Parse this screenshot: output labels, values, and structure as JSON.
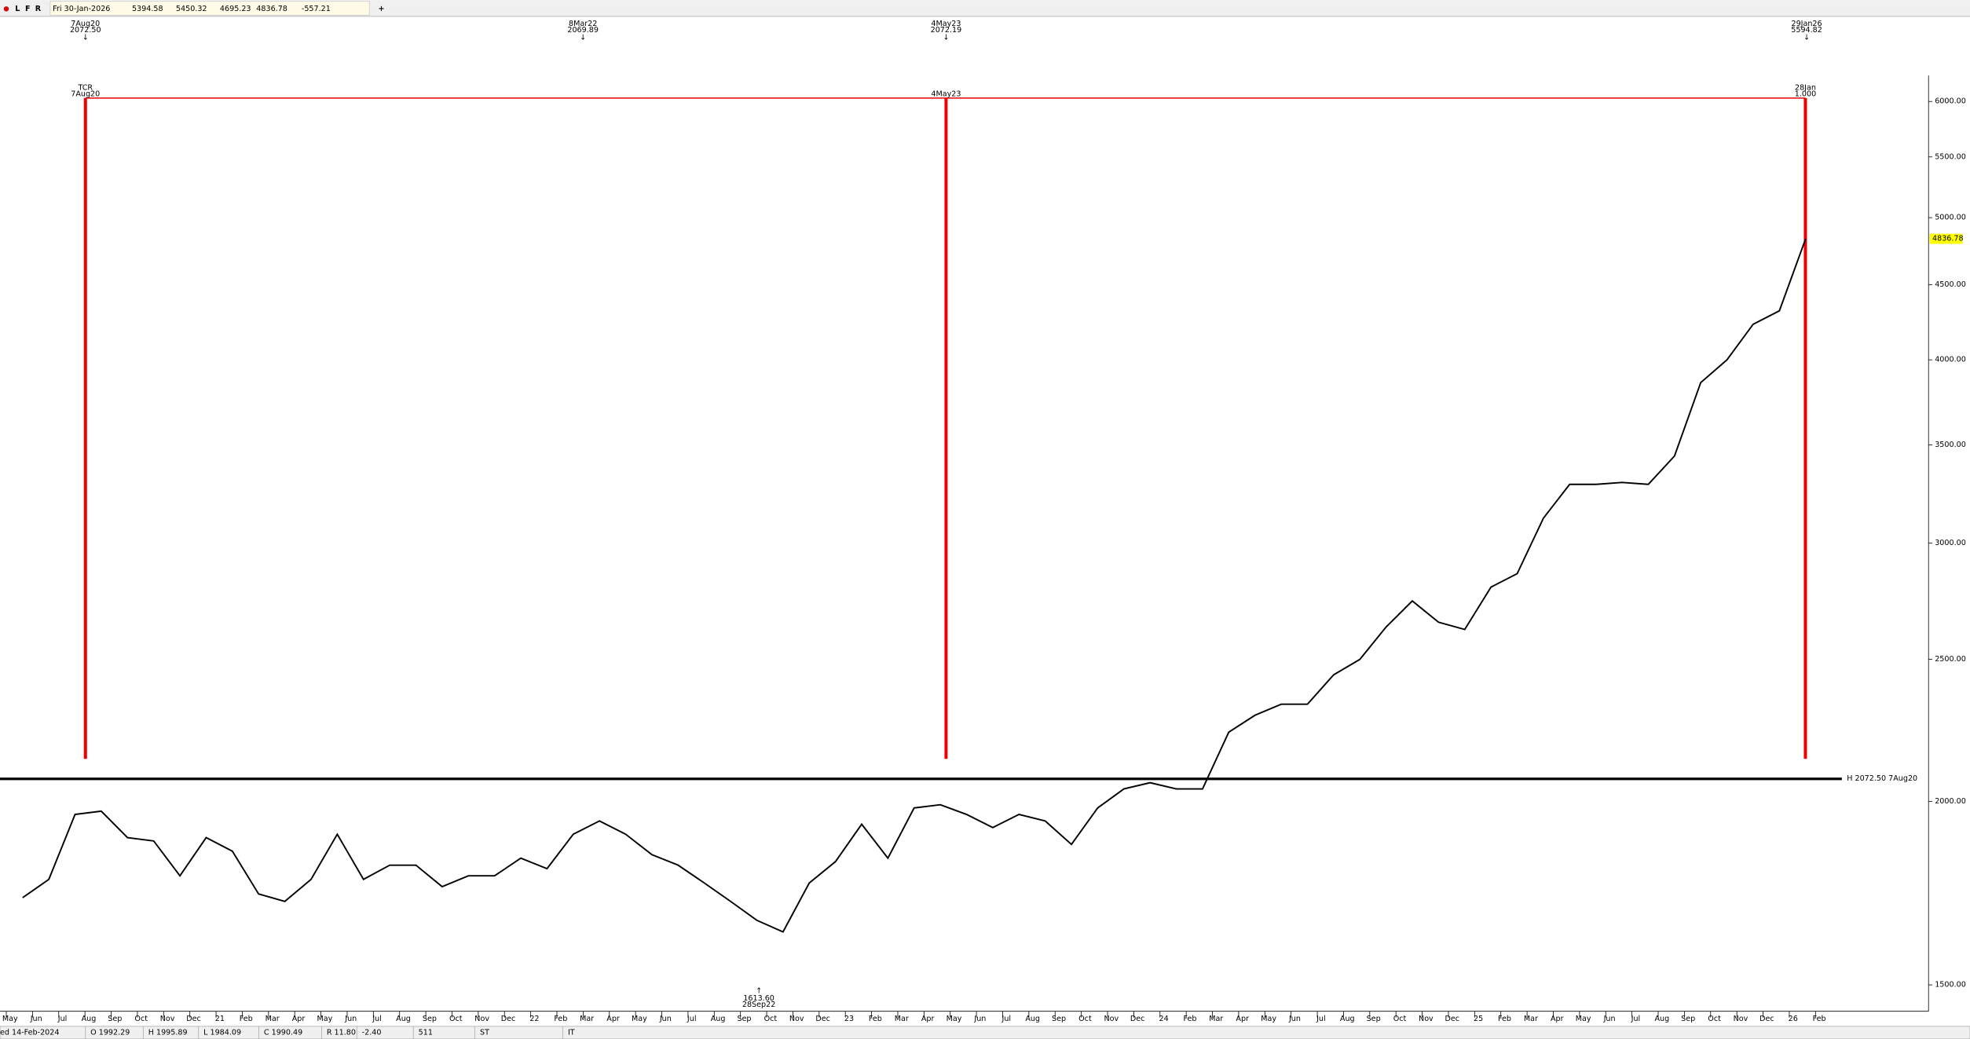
{
  "toolbar": {
    "buttons": [
      "L",
      "F",
      "R"
    ],
    "date": "Fri 30-Jan-2026",
    "open": "5394.58",
    "high": "5450.32",
    "low": "4695.23",
    "close": "4836.78",
    "change": "-557.21",
    "add": "+"
  },
  "status_bar": [
    "ed 14-Feb-2024",
    "O 1992.29",
    "H 1995.89",
    "L 1984.09",
    "C 1990.49",
    "R 11.80",
    "-2.40",
    "511",
    "ST",
    "IT"
  ],
  "chart_data": {
    "type": "line",
    "yscale": "log",
    "categories": [
      "May",
      "Jun",
      "Jul",
      "Aug",
      "Sep",
      "Oct",
      "Nov",
      "Dec",
      "21",
      "Feb",
      "Mar",
      "Apr",
      "May",
      "Jun",
      "Jul",
      "Aug",
      "Sep",
      "Oct",
      "Nov",
      "Dec",
      "22",
      "Feb",
      "Mar",
      "Apr",
      "May",
      "Jun",
      "Jul",
      "Aug",
      "Sep",
      "Oct",
      "Nov",
      "Dec",
      "23",
      "Feb",
      "Mar",
      "Apr",
      "May",
      "Jun",
      "Jul",
      "Aug",
      "Sep",
      "Oct",
      "Nov",
      "Dec",
      "24",
      "Feb",
      "Mar",
      "Apr",
      "May",
      "Jun",
      "Jul",
      "Aug",
      "Sep",
      "Oct",
      "Nov",
      "Dec",
      "25",
      "Feb",
      "Mar",
      "Apr",
      "May",
      "Jun",
      "Jul",
      "Aug",
      "Sep",
      "Oct",
      "Nov",
      "Dec",
      "26",
      "Feb"
    ],
    "series": [
      {
        "color": "#000000",
        "values": [
          1720,
          1770,
          1960,
          1970,
          1890,
          1880,
          1780,
          1890,
          1850,
          1730,
          1710,
          1770,
          1900,
          1770,
          1810,
          1810,
          1750,
          1780,
          1780,
          1830,
          1800,
          1900,
          1940,
          1900,
          1840,
          1810,
          1760,
          1710,
          1660,
          1630,
          1760,
          1820,
          1930,
          1830,
          1980,
          1990,
          1960,
          1920,
          1960,
          1940,
          1870,
          1980,
          2040,
          2060,
          2040,
          2040,
          2230,
          2290,
          2330,
          2330,
          2440,
          2500,
          2630,
          2740,
          2650,
          2620,
          2800,
          2860,
          3120,
          3290,
          3290,
          3300,
          3290,
          3440,
          3860,
          4000,
          4230,
          4320,
          4836.78,
          null
        ]
      }
    ],
    "ylim": [
      1425,
      6250
    ],
    "yticks": [
      {
        "value": 1500,
        "label": "1500.00"
      },
      {
        "value": 2000,
        "label": "2000.00"
      },
      {
        "value": 2500,
        "label": "2500.00"
      },
      {
        "value": 3000,
        "label": "3000.00"
      },
      {
        "value": 3500,
        "label": "3500.00"
      },
      {
        "value": 4000,
        "label": "4000.00"
      },
      {
        "value": 4500,
        "label": "4500.00"
      },
      {
        "value": 5000,
        "label": "5000.00"
      },
      {
        "value": 5500,
        "label": "5500.00"
      },
      {
        "value": 6000,
        "label": "6000.00"
      }
    ],
    "current_price": 4836.78,
    "hline": {
      "value": 2072.5,
      "label": "H 2072.50 7Aug20"
    },
    "markers": [
      [
        "7Aug20",
        "2072.50"
      ],
      [
        "8Mar22",
        "2069.89"
      ],
      [
        "4May23",
        "2072.19"
      ],
      [
        "29Jan26",
        "5594.82"
      ]
    ],
    "low_marker": [
      "1613.60",
      "28Sep22"
    ],
    "cycle_labels": [
      [
        "TCR",
        "7Aug20"
      ],
      [
        "4May23"
      ],
      [
        "28Jan",
        "1.000"
      ]
    ]
  }
}
